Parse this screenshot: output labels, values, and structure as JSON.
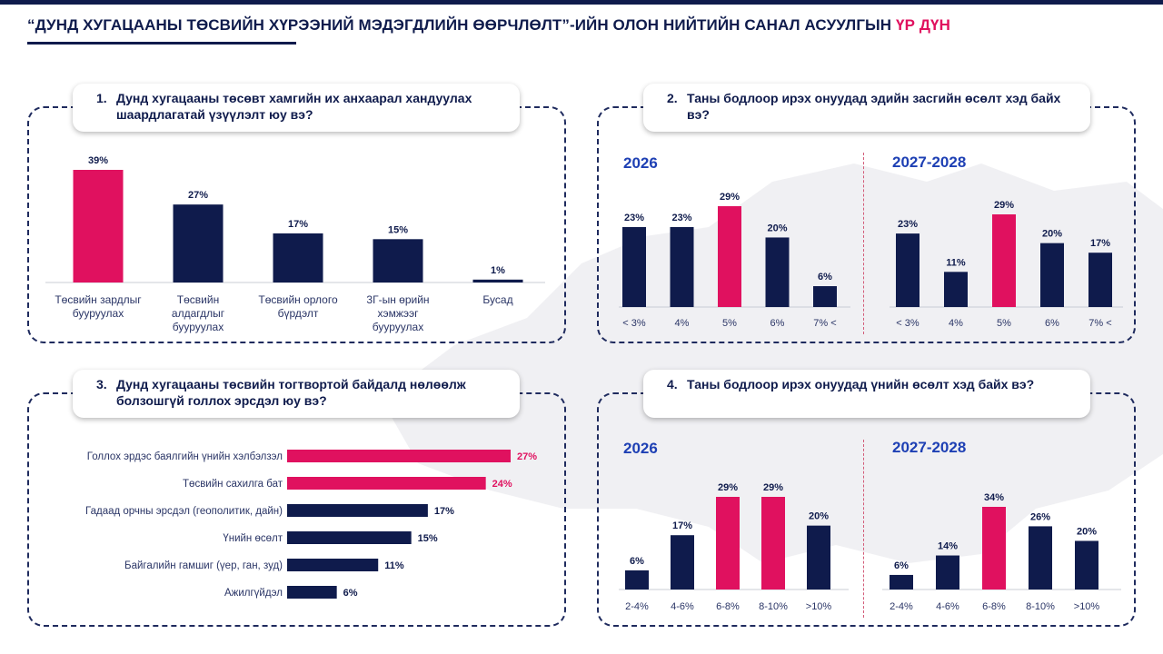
{
  "page": {
    "title_main": "“ДУНД ХУГАЦААНЫ ТӨСВИЙН ХҮРЭЭНИЙ МЭДЭГДЛИЙН ӨӨРЧЛӨЛТ”-ИЙН ОЛОН НИЙТИЙН САНАЛ АСУУЛГЫН ",
    "title_accent": "ҮР ДҮН"
  },
  "colors": {
    "navy": "#0f1b4c",
    "accent": "#e0115f",
    "blue_title": "#1e40b4"
  },
  "questions": {
    "q1": {
      "num": "1.",
      "text": "Дунд хугацааны төсөвт хамгийн их анхаарал хандуулах шаардлагатай үзүүлэлт юу вэ?"
    },
    "q2": {
      "num": "2.",
      "text": "Таны бодлоор ирэх онуудад эдийн засгийн өсөлт хэд байх вэ?",
      "sub_left": "2026",
      "sub_right": "2027-2028"
    },
    "q3": {
      "num": "3.",
      "text": "Дунд хугацааны төсвийн тогтвортой байдалд нөлөөлж болзошгүй голлох эрсдэл юу вэ?"
    },
    "q4": {
      "num": "4.",
      "text": "Таны бодлоор ирэх онуудад үнийн өсөлт хэд байх вэ?",
      "sub_left": "2026",
      "sub_right": "2027-2028"
    }
  },
  "chart_data": [
    {
      "id": "q1",
      "type": "bar",
      "categories": [
        [
          "Төсвийн зардлыг",
          "бууруулах"
        ],
        [
          "Төсвийн",
          "алдагдлыг",
          "бууруулах"
        ],
        [
          "Төсвийн орлого",
          "бүрдэлт"
        ],
        [
          "3Г-ын өрийн",
          "хэмжээг",
          "бууруулах"
        ],
        [
          "Бусад"
        ]
      ],
      "values": [
        39,
        27,
        17,
        15,
        1
      ],
      "labels": [
        "39%",
        "27%",
        "17%",
        "15%",
        "1%"
      ],
      "highlight": [
        0
      ],
      "ylim": [
        0,
        39
      ]
    },
    {
      "id": "q2_2026",
      "type": "bar",
      "categories": [
        "< 3%",
        "4%",
        "5%",
        "6%",
        "7% <"
      ],
      "values": [
        23,
        23,
        29,
        20,
        6
      ],
      "labels": [
        "23%",
        "23%",
        "29%",
        "20%",
        "6%"
      ],
      "highlight": [
        2
      ],
      "ylim": [
        0,
        29
      ]
    },
    {
      "id": "q2_2027_2028",
      "type": "bar",
      "categories": [
        "< 3%",
        "4%",
        "5%",
        "6%",
        "7% <"
      ],
      "values": [
        23,
        11,
        29,
        20,
        17
      ],
      "labels": [
        "23%",
        "11%",
        "29%",
        "20%",
        "17%"
      ],
      "highlight": [
        2
      ],
      "ylim": [
        0,
        29
      ]
    },
    {
      "id": "q3",
      "type": "bar",
      "orientation": "horizontal",
      "categories": [
        "Голлох эрдэс баялгийн үнийн хэлбэлзэл",
        "Төсвийн сахилга бат",
        "Гадаад орчны эрсдэл (геополитик, дайн)",
        "Үнийн өсөлт",
        "Байгалийн гамшиг  (үер, ган, зуд)",
        "Ажилгүйдэл"
      ],
      "values": [
        27,
        24,
        17,
        15,
        11,
        6
      ],
      "labels": [
        "27%",
        "24%",
        "17%",
        "15%",
        "11%",
        "6%"
      ],
      "highlight": [
        0,
        1
      ],
      "xlim": [
        0,
        27
      ]
    },
    {
      "id": "q4_2026",
      "type": "bar",
      "categories": [
        "2-4%",
        "4-6%",
        "6-8%",
        "8-10%",
        ">10%"
      ],
      "values": [
        6,
        17,
        29,
        29,
        20
      ],
      "labels": [
        "6%",
        "17%",
        "29%",
        "29%",
        "20%"
      ],
      "highlight": [
        2,
        3
      ],
      "ylim": [
        0,
        29
      ]
    },
    {
      "id": "q4_2027_2028",
      "type": "bar",
      "categories": [
        "2-4%",
        "4-6%",
        "6-8%",
        "8-10%",
        ">10%"
      ],
      "values": [
        6,
        14,
        34,
        26,
        20
      ],
      "labels": [
        "6%",
        "14%",
        "34%",
        "26%",
        "20%"
      ],
      "highlight": [
        2
      ],
      "ylim": [
        0,
        34
      ]
    }
  ]
}
